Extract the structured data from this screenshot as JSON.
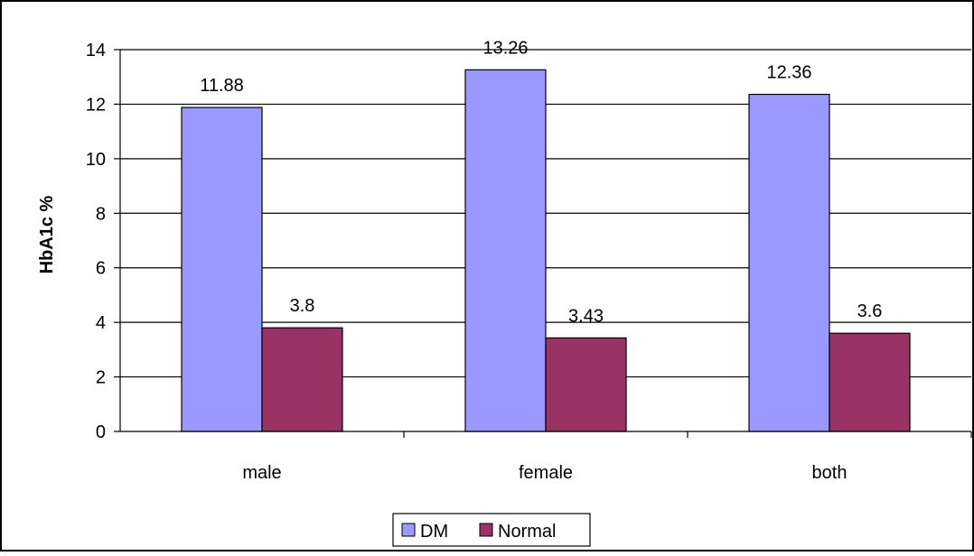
{
  "chart_data": {
    "type": "bar",
    "categories": [
      "male",
      "female",
      "both"
    ],
    "series": [
      {
        "name": "DM",
        "values": [
          11.88,
          13.26,
          12.36
        ],
        "color": "#9999FF",
        "labels": [
          "11.88",
          "13.26",
          "12.36"
        ]
      },
      {
        "name": "Normal",
        "values": [
          3.8,
          3.43,
          3.6
        ],
        "color": "#993366",
        "labels": [
          "3.8",
          "3.43",
          "3.6"
        ]
      }
    ],
    "title": "",
    "xlabel": "",
    "ylabel": "HbA1c %",
    "ylim": [
      0,
      14
    ],
    "yticks": [
      "0",
      "2",
      "4",
      "6",
      "8",
      "10",
      "12",
      "14"
    ],
    "grid": true,
    "legend_position": "bottom"
  }
}
